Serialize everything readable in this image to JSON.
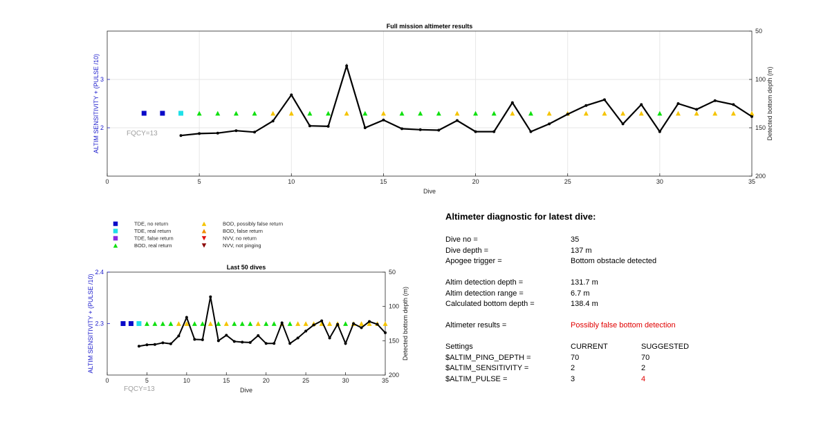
{
  "colors": {
    "axis_left": "#1a1acc",
    "fqcy": "#a0a0a0",
    "line": "#000000",
    "grid": "#e6e6e6",
    "warning": "#e00000"
  },
  "legend": [
    {
      "label": "TDE, no return",
      "marker": "square",
      "color": "#0a0ac8"
    },
    {
      "label": "TDE, real return",
      "marker": "square",
      "color": "#20e0e8"
    },
    {
      "label": "TDE, false return",
      "marker": "square",
      "color": "#8a2be2"
    },
    {
      "label": "BOD, real return",
      "marker": "triangle-up",
      "color": "#10e010"
    },
    {
      "label": "BOD, possibly false return",
      "marker": "triangle-up",
      "color": "#f5c400"
    },
    {
      "label": "BOD, false return",
      "marker": "triangle-up",
      "color": "#f08c00"
    },
    {
      "label": "NVV, no return",
      "marker": "triangle-down",
      "color": "#e01010"
    },
    {
      "label": "NVV, not pinging",
      "marker": "triangle-down",
      "color": "#8b0000"
    }
  ],
  "chart_data": [
    {
      "type": "line",
      "title": "Full mission altimeter results",
      "xlabel": "Dive",
      "ylabel": "ALTIM SENSITIVITY + (PULSE /10)",
      "ylabel_right": "Detected bottom depth (m)",
      "xlim": [
        0,
        35
      ],
      "ylim": [
        1,
        4
      ],
      "ylim_right": [
        50,
        200
      ],
      "right_axis_reversed": true,
      "x_ticks": [
        0,
        5,
        10,
        15,
        20,
        25,
        30,
        35
      ],
      "y_ticks": [
        2,
        3
      ],
      "y_right_ticks": [
        50,
        100,
        150,
        200
      ],
      "grid": true,
      "annotation": "FQCY=13",
      "series": [
        {
          "marker": "square",
          "color": "#0a0ac8",
          "x": [
            2,
            3
          ],
          "y": [
            2.3,
            2.3
          ]
        },
        {
          "marker": "square",
          "color": "#20e0e8",
          "x": [
            4
          ],
          "y": [
            2.3
          ]
        },
        {
          "marker": "triangle-up",
          "color": "#10e010",
          "x": [
            5,
            6,
            7,
            8,
            11,
            12,
            14,
            16,
            17,
            18,
            20,
            21,
            23,
            30
          ],
          "y": [
            2.3,
            2.3,
            2.3,
            2.3,
            2.3,
            2.3,
            2.3,
            2.3,
            2.3,
            2.3,
            2.3,
            2.3,
            2.3,
            2.3
          ]
        },
        {
          "marker": "triangle-up",
          "color": "#f5c400",
          "x": [
            9,
            10,
            13,
            15,
            19,
            22,
            24,
            25,
            26,
            27,
            28,
            29,
            31,
            32,
            33,
            34,
            35
          ],
          "y": [
            2.3,
            2.3,
            2.3,
            2.3,
            2.3,
            2.3,
            2.3,
            2.3,
            2.3,
            2.3,
            2.3,
            2.3,
            2.3,
            2.3,
            2.3,
            2.3,
            2.3
          ]
        },
        {
          "axis": "right",
          "marker": "dot",
          "color": "#000000",
          "x": [
            4,
            5,
            6,
            7,
            8,
            9,
            10,
            11,
            12,
            13,
            14,
            15,
            16,
            17,
            18,
            19,
            20,
            21,
            22,
            23,
            24,
            25,
            26,
            27,
            28,
            29,
            30,
            31,
            32,
            33,
            34,
            35
          ],
          "y": [
            158,
            156,
            155.5,
            153,
            154.5,
            143,
            116,
            148,
            148.5,
            86,
            150,
            142,
            151,
            152,
            152.5,
            142.5,
            154,
            154,
            124,
            154,
            146,
            136,
            127,
            121,
            146,
            126,
            154,
            125,
            131,
            122,
            126,
            138.4
          ]
        }
      ]
    },
    {
      "type": "line",
      "title": "Last 50 dives",
      "xlabel": "Dive",
      "ylabel": "ALTIM SENSITIVITY + (PULSE /10)",
      "ylabel_right": "Detected bottom depth (m)",
      "xlim": [
        0,
        35
      ],
      "ylim": [
        2.2,
        2.4
      ],
      "ylim_right": [
        50,
        200
      ],
      "right_axis_reversed": true,
      "x_ticks": [
        0,
        5,
        10,
        15,
        20,
        25,
        30,
        35
      ],
      "y_ticks": [
        2.3,
        2.4
      ],
      "y_right_ticks": [
        50,
        100,
        150,
        200
      ],
      "grid": false,
      "annotation": "FQCY=13",
      "series": [
        {
          "marker": "square",
          "color": "#0a0ac8",
          "x": [
            2,
            3
          ],
          "y": [
            2.3,
            2.3
          ]
        },
        {
          "marker": "square",
          "color": "#20e0e8",
          "x": [
            4
          ],
          "y": [
            2.3
          ]
        },
        {
          "marker": "triangle-up",
          "color": "#10e010",
          "x": [
            5,
            6,
            7,
            8,
            11,
            12,
            14,
            16,
            17,
            18,
            20,
            21,
            23,
            30
          ],
          "y": [
            2.3,
            2.3,
            2.3,
            2.3,
            2.3,
            2.3,
            2.3,
            2.3,
            2.3,
            2.3,
            2.3,
            2.3,
            2.3,
            2.3
          ]
        },
        {
          "marker": "triangle-up",
          "color": "#f5c400",
          "x": [
            9,
            10,
            13,
            15,
            19,
            22,
            24,
            25,
            26,
            27,
            28,
            29,
            31,
            32,
            33,
            34,
            35
          ],
          "y": [
            2.3,
            2.3,
            2.3,
            2.3,
            2.3,
            2.3,
            2.3,
            2.3,
            2.3,
            2.3,
            2.3,
            2.3,
            2.3,
            2.3,
            2.3,
            2.3,
            2.3
          ]
        },
        {
          "axis": "right",
          "marker": "dot",
          "color": "#000000",
          "x": [
            4,
            5,
            6,
            7,
            8,
            9,
            10,
            11,
            12,
            13,
            14,
            15,
            16,
            17,
            18,
            19,
            20,
            21,
            22,
            23,
            24,
            25,
            26,
            27,
            28,
            29,
            30,
            31,
            32,
            33,
            34,
            35
          ],
          "y": [
            158,
            156,
            155.5,
            153,
            154.5,
            143,
            116,
            148,
            148.5,
            86,
            150,
            142,
            151,
            152,
            152.5,
            142.5,
            154,
            154,
            124,
            154,
            146,
            136,
            127,
            121,
            146,
            126,
            154,
            125,
            131,
            122,
            126,
            138.4
          ]
        }
      ]
    }
  ],
  "diagnostic": {
    "title": "Altimeter diagnostic for latest dive:",
    "dive_no_label": "Dive no =",
    "dive_no": "35",
    "dive_depth_label": "Dive depth =",
    "dive_depth": "137 m",
    "apogee_label": "Apogee trigger =",
    "apogee": "Bottom obstacle detected",
    "altim_depth_label": "Altim detection depth =",
    "altim_depth": "131.7 m",
    "altim_range_label": "Altim detection range =",
    "altim_range": "6.7 m",
    "calc_depth_label": "Calculated bottom depth =",
    "calc_depth": "138.4 m",
    "results_label": "Altimeter results =",
    "results": "Possibly false bottom detection",
    "settings_label": "Settings",
    "current_label": "CURRENT",
    "suggested_label": "SUGGESTED",
    "settings": [
      {
        "name": "$ALTIM_PING_DEPTH =",
        "current": "70",
        "suggested": "70",
        "changed": false
      },
      {
        "name": "$ALTIM_SENSITIVITY =",
        "current": "2",
        "suggested": "2",
        "changed": false
      },
      {
        "name": "$ALTIM_PULSE =",
        "current": "3",
        "suggested": "4",
        "changed": true
      }
    ]
  }
}
